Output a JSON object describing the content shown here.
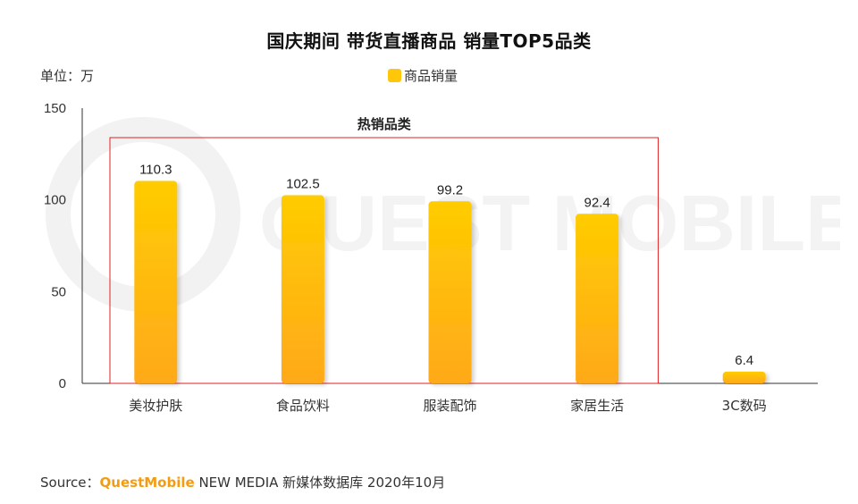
{
  "title": "国庆期间 带货直播商品 销量TOP5品类",
  "unit_label": "单位：万",
  "legend_label": "商品销量",
  "highlight_label": "热销品类",
  "watermark_text": "QUEST MOBILE",
  "footer": {
    "prefix": "Source：",
    "brand": "QuestMobile",
    "suffix": " NEW MEDIA 新媒体数据库 2020年10月"
  },
  "colors": {
    "bar_top": "#ffcc00",
    "bar_bottom": "#ffa91a",
    "highlight_border": "#e02020",
    "axis": "#333333"
  },
  "chart_data": {
    "type": "bar",
    "categories": [
      "美妆护肤",
      "食品饮料",
      "服装配饰",
      "家居生活",
      "3C数码"
    ],
    "series": [
      {
        "name": "商品销量",
        "values": [
          110.3,
          102.5,
          99.2,
          92.4,
          6.4
        ]
      }
    ],
    "ylim": [
      0,
      150
    ],
    "yticks": [
      0,
      50,
      100,
      150
    ],
    "highlight": {
      "label": "热销品类",
      "categories": [
        "美妆护肤",
        "食品饮料",
        "服装配饰",
        "家居生活"
      ]
    },
    "legend_position": "top-center",
    "grid": false
  }
}
